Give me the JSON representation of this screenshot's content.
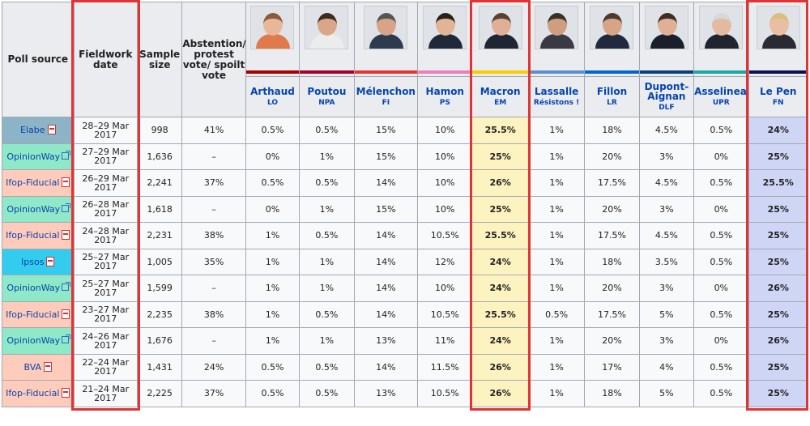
{
  "headers": {
    "poll_source": "Poll source",
    "fieldwork_date": "Fieldwork date",
    "sample_size": "Sample size",
    "abstention": "Abstention/ protest vote/ spoilt vote"
  },
  "candidates": [
    {
      "name": "Arthaud",
      "party": "LO",
      "color": "#a50000",
      "skin": "#e8b79a",
      "hair": "#8a5a3a",
      "shirt": "#e07a4a"
    },
    {
      "name": "Poutou",
      "party": "NPA",
      "color": "#a3002c",
      "skin": "#d9a788",
      "hair": "#3b2b20",
      "shirt": "#ececec"
    },
    {
      "name": "Mélenchon",
      "party": "FI",
      "color": "#e3362f",
      "skin": "#d8a386",
      "hair": "#555555",
      "shirt": "#2e3a4e"
    },
    {
      "name": "Hamon",
      "party": "PS",
      "color": "#ee7eba",
      "skin": "#e2b497",
      "hair": "#2a2019",
      "shirt": "#1e2a3a"
    },
    {
      "name": "Macron",
      "party": "EM",
      "color": "#f6cd00",
      "skin": "#e0b096",
      "hair": "#5a4030",
      "shirt": "#1f2633"
    },
    {
      "name": "Lassalle",
      "party": "Résistons !",
      "color": "#5a8fc9",
      "skin": "#cf9d80",
      "hair": "#3a3026",
      "shirt": "#3a3a44"
    },
    {
      "name": "Fillon",
      "party": "LR",
      "color": "#0066cc",
      "skin": "#d8a487",
      "hair": "#4a3a30",
      "shirt": "#202a3c"
    },
    {
      "name": "Dupont-Aignan",
      "party": "DLF",
      "color": "#0a3e7a",
      "skin": "#dfb095",
      "hair": "#3d2f24",
      "shirt": "#1a1f2b"
    },
    {
      "name": "Asselineau",
      "party": "UPR",
      "color": "#18a8a8",
      "skin": "#e3b9a2",
      "hair": "#d8d8d8",
      "shirt": "#20242e"
    },
    {
      "name": "Le Pen",
      "party": "FN",
      "color": "#0d0d55",
      "skin": "#e8bfa5",
      "hair": "#d9bf7a",
      "shirt": "#2a2a35"
    }
  ],
  "rows": [
    {
      "source": "Elabe",
      "source_icon": "pdf-icon",
      "source_color": "#8db3c6",
      "date": [
        "28–29 Mar",
        "2017"
      ],
      "sample": "998",
      "abst": "41%",
      "values": [
        "0.5%",
        "0.5%",
        "15%",
        "10%",
        "25.5%",
        "1%",
        "18%",
        "4.5%",
        "0.5%",
        "24%"
      ]
    },
    {
      "source": "OpinionWay",
      "source_icon": "external-link-icon",
      "source_color": "#8fe8c8",
      "date": [
        "27–29 Mar",
        "2017"
      ],
      "sample": "1,636",
      "abst": "–",
      "values": [
        "0%",
        "1%",
        "15%",
        "10%",
        "25%",
        "1%",
        "20%",
        "3%",
        "0%",
        "25%"
      ]
    },
    {
      "source": "Ifop-Fiducial",
      "source_icon": "pdf-icon",
      "source_color": "#ffccbb",
      "date": [
        "26–29 Mar",
        "2017"
      ],
      "sample": "2,241",
      "abst": "37%",
      "values": [
        "0.5%",
        "0.5%",
        "14%",
        "10%",
        "26%",
        "1%",
        "17.5%",
        "4.5%",
        "0.5%",
        "25.5%"
      ]
    },
    {
      "source": "OpinionWay",
      "source_icon": "external-link-icon",
      "source_color": "#8fe8c8",
      "date": [
        "26–28 Mar",
        "2017"
      ],
      "sample": "1,618",
      "abst": "–",
      "values": [
        "0%",
        "1%",
        "15%",
        "10%",
        "25%",
        "1%",
        "20%",
        "3%",
        "0%",
        "25%"
      ]
    },
    {
      "source": "Ifop-Fiducial",
      "source_icon": "pdf-icon",
      "source_color": "#ffccbb",
      "date": [
        "24–28 Mar",
        "2017"
      ],
      "sample": "2,231",
      "abst": "38%",
      "values": [
        "1%",
        "0.5%",
        "14%",
        "10.5%",
        "25.5%",
        "1%",
        "17.5%",
        "4.5%",
        "0.5%",
        "25%"
      ]
    },
    {
      "source": "Ipsos",
      "source_icon": "pdf-icon",
      "source_color": "#33ccee",
      "date": [
        "25–27 Mar",
        "2017"
      ],
      "sample": "1,005",
      "abst": "35%",
      "values": [
        "1%",
        "1%",
        "14%",
        "12%",
        "24%",
        "1%",
        "18%",
        "3.5%",
        "0.5%",
        "25%"
      ]
    },
    {
      "source": "OpinionWay",
      "source_icon": "external-link-icon",
      "source_color": "#8fe8c8",
      "date": [
        "25–27 Mar",
        "2017"
      ],
      "sample": "1,599",
      "abst": "–",
      "values": [
        "1%",
        "1%",
        "14%",
        "10%",
        "24%",
        "1%",
        "20%",
        "3%",
        "0%",
        "26%"
      ]
    },
    {
      "source": "Ifop-Fiducial",
      "source_icon": "pdf-icon",
      "source_color": "#ffccbb",
      "date": [
        "23–27 Mar",
        "2017"
      ],
      "sample": "2,235",
      "abst": "38%",
      "values": [
        "1%",
        "0.5%",
        "14%",
        "10.5%",
        "25.5%",
        "0.5%",
        "17.5%",
        "5%",
        "0.5%",
        "25%"
      ]
    },
    {
      "source": "OpinionWay",
      "source_icon": "external-link-icon",
      "source_color": "#8fe8c8",
      "date": [
        "24–26 Mar",
        "2017"
      ],
      "sample": "1,676",
      "abst": "–",
      "values": [
        "1%",
        "1%",
        "13%",
        "11%",
        "24%",
        "1%",
        "20%",
        "3%",
        "0%",
        "26%"
      ]
    },
    {
      "source": "BVA",
      "source_icon": "pdf-icon",
      "source_color": "#ffccbb",
      "date": [
        "22–24 Mar",
        "2017"
      ],
      "sample": "1,431",
      "abst": "24%",
      "values": [
        "0.5%",
        "0.5%",
        "14%",
        "11.5%",
        "26%",
        "1%",
        "17%",
        "4%",
        "0.5%",
        "25%"
      ]
    },
    {
      "source": "Ifop-Fiducial",
      "source_icon": "pdf-icon",
      "source_color": "#ffccbb",
      "date": [
        "21–24 Mar",
        "2017"
      ],
      "sample": "2,225",
      "abst": "37%",
      "values": [
        "0.5%",
        "0.5%",
        "13%",
        "10.5%",
        "26%",
        "1%",
        "18%",
        "5%",
        "0.5%",
        "25%"
      ]
    }
  ],
  "highlight_color": "#e03434",
  "macron_cell_color": "#fdf3c0",
  "lepen_cell_color": "#cfd6f5"
}
